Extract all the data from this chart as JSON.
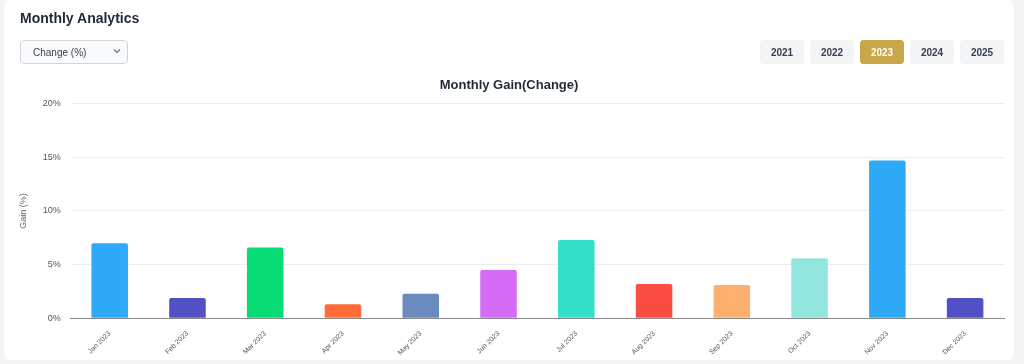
{
  "chart_data": {
    "type": "bar",
    "title": "Monthly Analytics",
    "subtitle": "Monthly Gain(Change)",
    "ylabel": "Gain (%)",
    "annotations": [
      "Change (%)",
      "2021",
      "2022",
      "2023",
      "2024",
      "2025"
    ],
    "categories": [
      "Jan 2023",
      "Feb 2023",
      "Mar 2023",
      "Apr 2023",
      "May 2023",
      "Jun 2023",
      "Jul 2023",
      "Aug 2023",
      "Sep 2023",
      "Oct 2023",
      "Nov 2023",
      "Dec 2023"
    ],
    "values": [
      7.0,
      1.9,
      6.6,
      1.3,
      2.3,
      4.5,
      7.3,
      3.2,
      3.1,
      5.6,
      14.7,
      1.9
    ],
    "colors": [
      "#2eaaf9",
      "#5150c5",
      "#06db74",
      "#ff6c37",
      "#6a8bbf",
      "#d46cf8",
      "#34dfca",
      "#f94c43",
      "#fdb06d",
      "#93e6de",
      "#2eaaf9",
      "#5150c5"
    ],
    "ylim": [
      0,
      20
    ],
    "yticks": [
      {
        "value": 0,
        "label": "0%"
      },
      {
        "value": 5,
        "label": "5%"
      },
      {
        "value": 10,
        "label": "10%"
      },
      {
        "value": 15,
        "label": "15%"
      },
      {
        "value": 20,
        "label": "20%"
      }
    ],
    "grid": "y",
    "legend": false
  }
}
